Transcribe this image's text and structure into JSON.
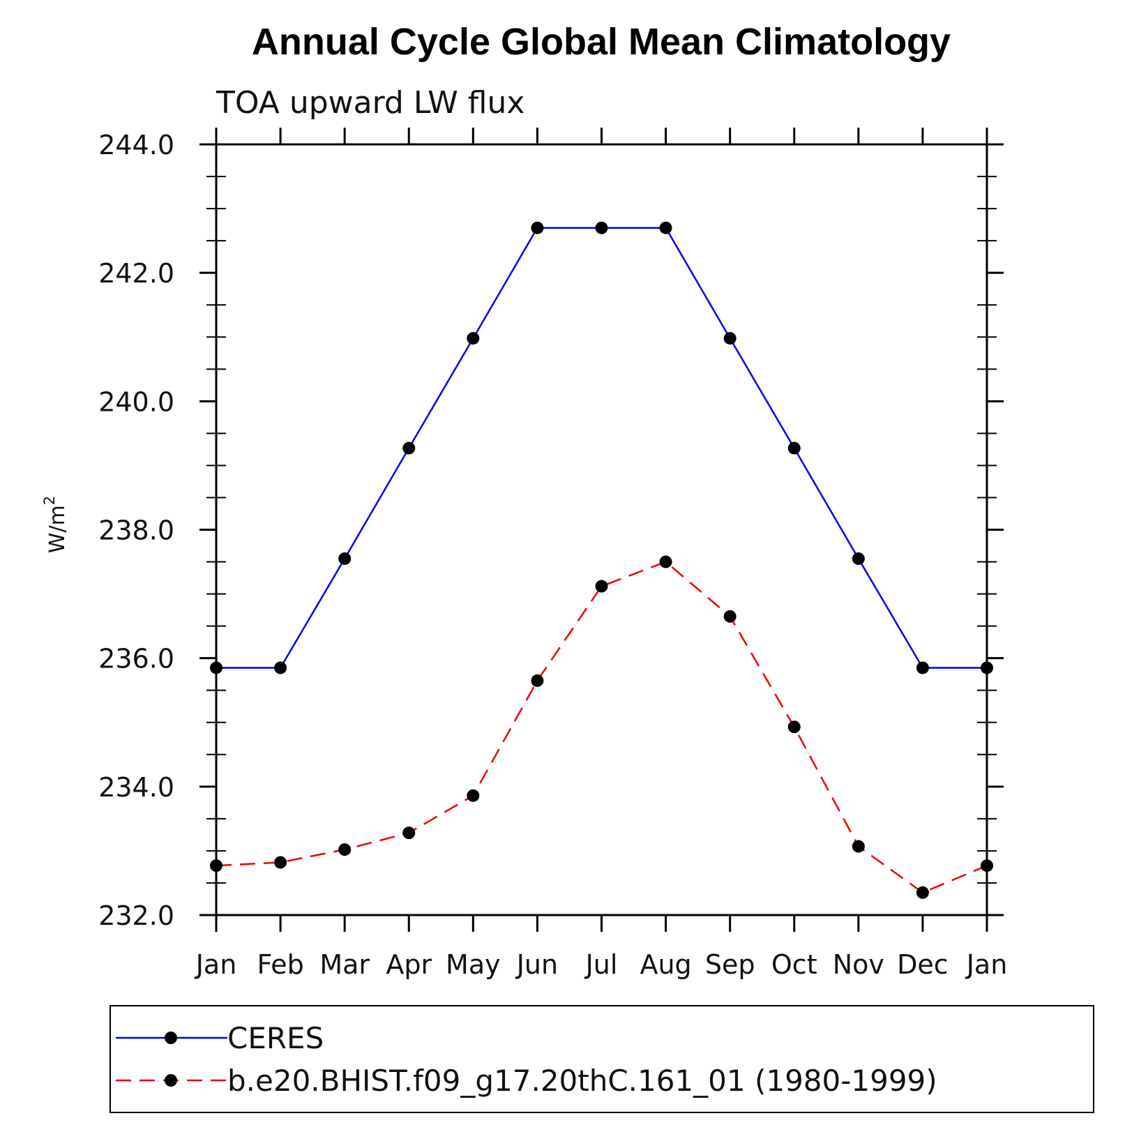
{
  "chart_data": {
    "type": "line",
    "title": "Annual Cycle Global Mean Climatology",
    "subtitle": "TOA upward LW flux",
    "ylabel_base": "W/m",
    "ylabel_sup": "2",
    "xlabel": "",
    "categories": [
      "Jan",
      "Feb",
      "Mar",
      "Apr",
      "May",
      "Jun",
      "Jul",
      "Aug",
      "Sep",
      "Oct",
      "Nov",
      "Dec",
      "Jan"
    ],
    "ylim": [
      232.0,
      244.0
    ],
    "yticks": [
      232.0,
      234.0,
      236.0,
      238.0,
      240.0,
      242.0,
      244.0
    ],
    "ytick_labels": [
      "232.0",
      "234.0",
      "236.0",
      "238.0",
      "240.0",
      "242.0",
      "244.0"
    ],
    "y_minor_step": 0.5,
    "legend_position": "bottom",
    "series": [
      {
        "name": "CERES",
        "color": "#0000ee",
        "dash": "solid",
        "marker": "filled-circle",
        "values": [
          235.85,
          235.85,
          237.55,
          239.27,
          240.98,
          242.7,
          242.7,
          242.7,
          240.98,
          239.27,
          237.55,
          235.85,
          235.85
        ]
      },
      {
        "name": "b.e20.BHIST.f09_g17.20thC.161_01 (1980-1999)",
        "color": "#ee0000",
        "dash": "dashed",
        "marker": "filled-circle",
        "values": [
          232.77,
          232.82,
          233.02,
          233.28,
          233.86,
          235.65,
          237.12,
          237.5,
          236.65,
          234.93,
          233.07,
          232.35,
          232.77
        ]
      }
    ]
  }
}
